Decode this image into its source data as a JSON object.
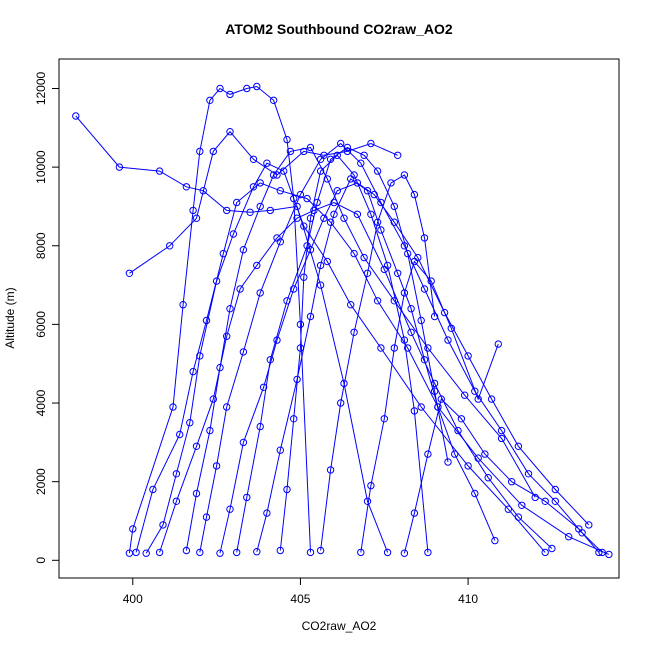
{
  "chart_data": {
    "type": "line",
    "title": "ATOM2 Southbound CO2raw_AO2",
    "xlabel": "CO2raw_AO2",
    "ylabel": "Altitude (m)",
    "xlim": [
      397.8,
      414.5
    ],
    "ylim": [
      -450,
      12750
    ],
    "xticks": [
      400,
      405,
      410
    ],
    "yticks": [
      0,
      2000,
      4000,
      6000,
      8000,
      10000,
      12000
    ],
    "grid": false,
    "legend": "none",
    "series": [
      {
        "color": "#0000ff",
        "marker": "open-circle",
        "x": [
          399.9,
          400.0,
          401.2,
          401.5,
          401.8,
          402.0,
          402.3,
          402.6,
          402.9,
          403.4,
          403.7,
          404.2,
          404.6,
          404.8,
          405.0,
          405.3
        ],
        "y": [
          180,
          800,
          3900,
          6500,
          8900,
          10400,
          11700,
          12000,
          11850,
          12000,
          12050,
          11700,
          10700,
          9200,
          6000,
          200
        ]
      },
      {
        "color": "#0000ff",
        "marker": "open-circle",
        "x": [
          398.3,
          399.6,
          400.8,
          401.6,
          402.1,
          402.8,
          403.5,
          404.1,
          404.9,
          405.6,
          406.3,
          407.0,
          407.6
        ],
        "y": [
          11300,
          10000,
          9900,
          9500,
          9400,
          8900,
          8850,
          8900,
          9000,
          7000,
          4500,
          1500,
          200
        ]
      },
      {
        "color": "#0000ff",
        "marker": "open-circle",
        "x": [
          399.9,
          401.1,
          401.9,
          402.4,
          402.9,
          403.6,
          404.3,
          405.1,
          405.7,
          406.4,
          407.1,
          407.9
        ],
        "y": [
          7300,
          8000,
          8700,
          10400,
          10900,
          10200,
          9800,
          10400,
          10300,
          10400,
          10600,
          10300
        ]
      },
      {
        "color": "#0000ff",
        "marker": "open-circle",
        "x": [
          400.1,
          400.6,
          401.4,
          401.8,
          402.2,
          402.7,
          403.1,
          403.8,
          404.4,
          405.2,
          405.9,
          406.6,
          407.3,
          408.2,
          409.1,
          410.3,
          411.6,
          413.0,
          414.2
        ],
        "y": [
          200,
          1800,
          3200,
          4800,
          6100,
          7800,
          9100,
          9600,
          9400,
          9200,
          8600,
          7800,
          6600,
          5400,
          3900,
          2600,
          1400,
          600,
          150
        ]
      },
      {
        "color": "#0000ff",
        "marker": "open-circle",
        "x": [
          400.4,
          400.9,
          401.3,
          401.7,
          402.0,
          402.5,
          403.0,
          403.6,
          404.0,
          404.5,
          405.1,
          405.8,
          406.5,
          407.4,
          408.6,
          410.0,
          411.2,
          412.3
        ],
        "y": [
          180,
          900,
          2200,
          3500,
          5200,
          7100,
          8300,
          9500,
          10100,
          9900,
          8500,
          7600,
          6500,
          5400,
          3900,
          2400,
          1300,
          200
        ]
      },
      {
        "color": "#0000ff",
        "marker": "open-circle",
        "x": [
          400.8,
          401.3,
          401.9,
          402.4,
          402.8,
          403.2,
          403.7,
          404.3,
          404.9,
          405.4,
          406.0,
          406.7,
          407.5,
          408.3,
          409.0,
          409.7,
          410.6,
          411.5,
          412.5
        ],
        "y": [
          200,
          1500,
          2900,
          4100,
          5700,
          6900,
          7500,
          8200,
          8700,
          8900,
          9100,
          8800,
          7400,
          5800,
          4500,
          3300,
          2100,
          1100,
          300
        ]
      },
      {
        "color": "#0000ff",
        "marker": "open-circle",
        "x": [
          401.6,
          401.9,
          402.3,
          402.6,
          402.9,
          403.3,
          403.8,
          404.2,
          404.7,
          405.3,
          405.8,
          406.3,
          406.9,
          407.8,
          408.8,
          409.9,
          411.0,
          412.0
        ],
        "y": [
          250,
          1700,
          3300,
          4900,
          6400,
          7900,
          9000,
          9800,
          10400,
          10500,
          9700,
          8700,
          7700,
          6600,
          5400,
          4200,
          3100,
          1600
        ]
      },
      {
        "color": "#0000ff",
        "marker": "open-circle",
        "x": [
          402.0,
          402.2,
          402.5,
          402.8,
          403.3,
          403.8,
          404.4,
          405.0,
          405.6,
          406.2,
          406.8,
          407.4,
          408.1,
          408.7,
          409.4,
          410.2,
          411.0,
          411.8,
          412.6,
          413.4,
          414.0
        ],
        "y": [
          200,
          1100,
          2400,
          3900,
          5300,
          6800,
          8100,
          9300,
          10200,
          10600,
          10100,
          9100,
          8000,
          6900,
          5600,
          4300,
          3300,
          2200,
          1500,
          700,
          200
        ]
      },
      {
        "color": "#0000ff",
        "marker": "open-circle",
        "x": [
          402.6,
          402.9,
          403.3,
          403.9,
          404.3,
          404.8,
          405.3,
          405.7,
          406.1,
          406.7,
          407.2,
          407.8,
          408.5,
          409.3,
          410.0,
          410.7,
          411.5,
          412.6,
          413.6
        ],
        "y": [
          180,
          1300,
          3000,
          4400,
          5600,
          6900,
          7900,
          8700,
          9400,
          9600,
          9300,
          8600,
          7700,
          6300,
          5200,
          4100,
          2900,
          1800,
          900
        ]
      },
      {
        "color": "#0000ff",
        "marker": "open-circle",
        "x": [
          403.1,
          403.4,
          403.8,
          404.1,
          404.6,
          405.2,
          405.5,
          405.9,
          406.4,
          406.9,
          407.3,
          407.8,
          408.2,
          408.6,
          409.0,
          409.4
        ],
        "y": [
          200,
          1600,
          3400,
          5100,
          6600,
          8000,
          9100,
          10200,
          10500,
          10300,
          9900,
          9000,
          7800,
          6100,
          4300,
          2500
        ]
      },
      {
        "color": "#0000ff",
        "marker": "open-circle",
        "x": [
          403.7,
          404.0,
          404.4,
          404.9,
          405.3,
          405.6,
          406.0,
          406.5,
          407.0,
          407.4,
          407.9,
          408.3,
          408.7,
          409.1,
          409.6,
          410.2,
          410.8
        ],
        "y": [
          220,
          1200,
          2800,
          4600,
          6200,
          7500,
          8800,
          9700,
          9400,
          8400,
          7300,
          6400,
          5100,
          3900,
          2700,
          1700,
          500
        ]
      },
      {
        "color": "#0000ff",
        "marker": "open-circle",
        "x": [
          404.4,
          404.6,
          404.8,
          405.0,
          405.1,
          405.3,
          405.6,
          406.1,
          406.6,
          407.1,
          407.6,
          408.1,
          408.4,
          408.8
        ],
        "y": [
          250,
          1800,
          3600,
          5400,
          7200,
          8700,
          9900,
          10300,
          9800,
          8800,
          7500,
          5600,
          3800,
          200
        ]
      },
      {
        "color": "#0000ff",
        "marker": "open-circle",
        "x": [
          405.6,
          405.9,
          406.2,
          406.6,
          407.0,
          407.3,
          407.7,
          408.1,
          408.4,
          408.7,
          409.0
        ],
        "y": [
          250,
          2300,
          4000,
          5800,
          7300,
          8600,
          9600,
          9800,
          9300,
          8200,
          6200
        ]
      },
      {
        "color": "#0000ff",
        "marker": "open-circle",
        "x": [
          406.8,
          407.1,
          407.5,
          407.8,
          408.1,
          408.4,
          408.9,
          409.5,
          410.3,
          410.9
        ],
        "y": [
          200,
          1900,
          3600,
          5400,
          6800,
          7600,
          7100,
          5900,
          4100,
          5500
        ]
      },
      {
        "color": "#0000ff",
        "marker": "open-circle",
        "x": [
          408.1,
          408.4,
          408.8,
          409.2,
          409.8,
          410.5,
          411.3,
          412.3,
          413.3,
          413.9
        ],
        "y": [
          180,
          1200,
          2700,
          4100,
          3600,
          2700,
          2000,
          1500,
          800,
          200
        ]
      }
    ]
  }
}
